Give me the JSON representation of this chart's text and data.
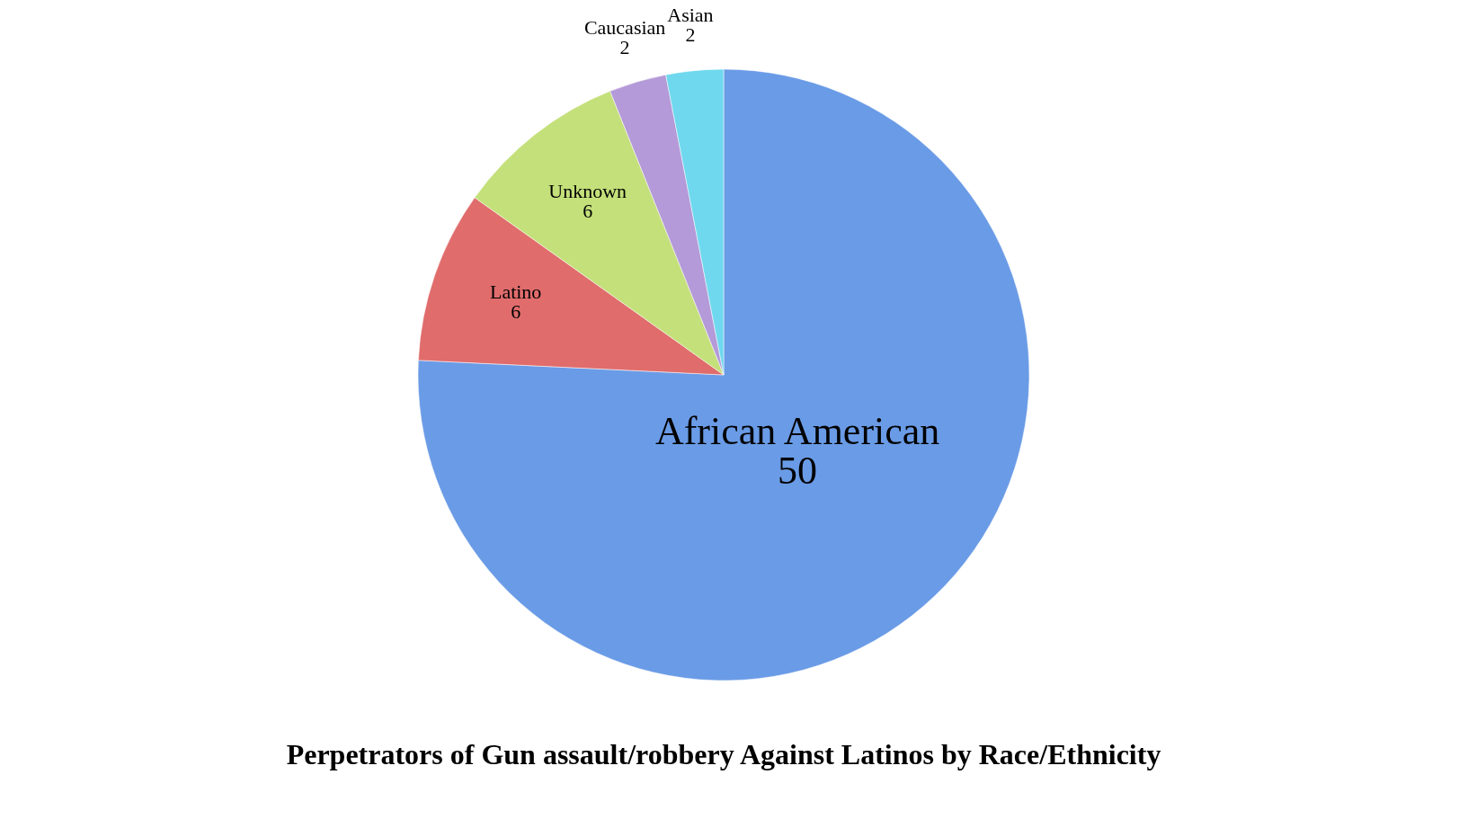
{
  "chart_data": {
    "type": "pie",
    "title": "Perpetrators of Gun assault/robbery Against Latinos by Race/Ethnicity",
    "categories": [
      "African American",
      "Latino",
      "Unknown",
      "Caucasian",
      "Asian"
    ],
    "values": [
      50,
      6,
      6,
      2,
      2
    ],
    "colors": [
      "#6a9be6",
      "#e06c6c",
      "#c4e07a",
      "#b49ad8",
      "#6fd8ee"
    ],
    "data_labels": true,
    "legend": false
  }
}
